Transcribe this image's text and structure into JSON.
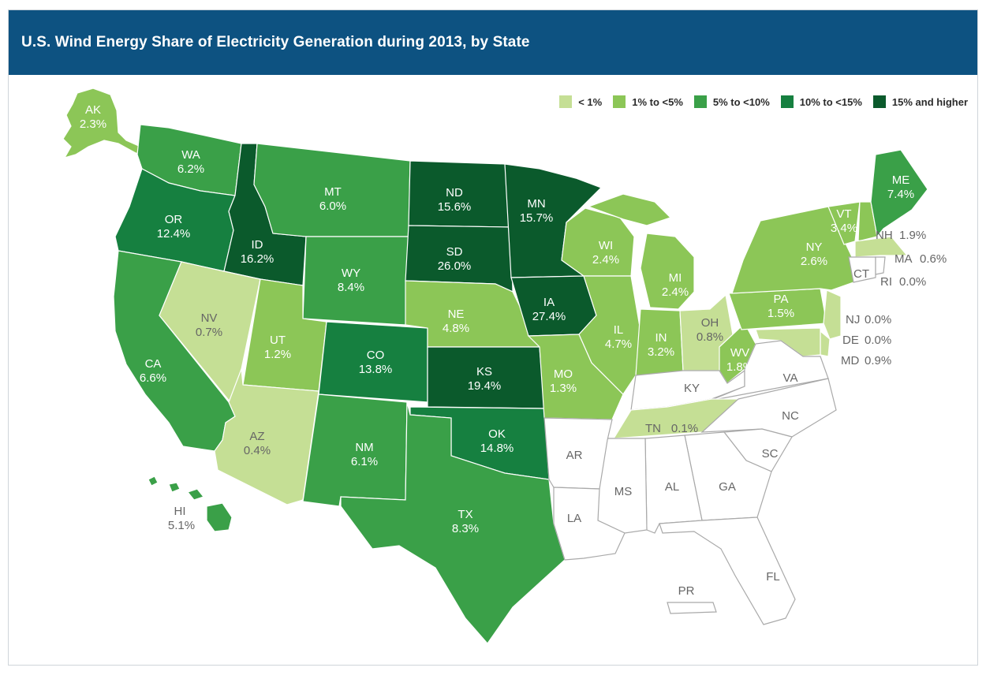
{
  "title": "U.S. Wind Energy Share of Electricity Generation during 2013, by State",
  "colors": {
    "c1": "#c5df95",
    "c2": "#8cc657",
    "c3": "#3aa048",
    "c4": "#168040",
    "c5": "#0b5a2c",
    "none": "#ffffff"
  },
  "legend": [
    {
      "label": "< 1%",
      "color": "#c5df95"
    },
    {
      "label": "1% to <5%",
      "color": "#8cc657"
    },
    {
      "label": "5% to <10%",
      "color": "#3aa048"
    },
    {
      "label": "10% to <15%",
      "color": "#168040"
    },
    {
      "label": "15% and higher",
      "color": "#0b5a2c"
    }
  ],
  "states": {
    "AK": {
      "abbr": "AK",
      "value": "2.3%"
    },
    "HI": {
      "abbr": "HI",
      "value": "5.1%"
    },
    "WA": {
      "abbr": "WA",
      "value": "6.2%"
    },
    "OR": {
      "abbr": "OR",
      "value": "12.4%"
    },
    "CA": {
      "abbr": "CA",
      "value": "6.6%"
    },
    "ID": {
      "abbr": "ID",
      "value": "16.2%"
    },
    "NV": {
      "abbr": "NV",
      "value": "0.7%"
    },
    "MT": {
      "abbr": "MT",
      "value": "6.0%"
    },
    "WY": {
      "abbr": "WY",
      "value": "8.4%"
    },
    "UT": {
      "abbr": "UT",
      "value": "1.2%"
    },
    "AZ": {
      "abbr": "AZ",
      "value": "0.4%"
    },
    "CO": {
      "abbr": "CO",
      "value": "13.8%"
    },
    "NM": {
      "abbr": "NM",
      "value": "6.1%"
    },
    "ND": {
      "abbr": "ND",
      "value": "15.6%"
    },
    "SD": {
      "abbr": "SD",
      "value": "26.0%"
    },
    "NE": {
      "abbr": "NE",
      "value": "4.8%"
    },
    "KS": {
      "abbr": "KS",
      "value": "19.4%"
    },
    "OK": {
      "abbr": "OK",
      "value": "14.8%"
    },
    "TX": {
      "abbr": "TX",
      "value": "8.3%"
    },
    "MN": {
      "abbr": "MN",
      "value": "15.7%"
    },
    "IA": {
      "abbr": "IA",
      "value": "27.4%"
    },
    "MO": {
      "abbr": "MO",
      "value": "1.3%"
    },
    "WI": {
      "abbr": "WI",
      "value": "2.4%"
    },
    "IL": {
      "abbr": "IL",
      "value": "4.7%"
    },
    "MI": {
      "abbr": "MI",
      "value": "2.4%"
    },
    "IN": {
      "abbr": "IN",
      "value": "3.2%"
    },
    "OH": {
      "abbr": "OH",
      "value": "0.8%"
    },
    "WV": {
      "abbr": "WV",
      "value": "1.8%"
    },
    "PA": {
      "abbr": "PA",
      "value": "1.5%"
    },
    "NY": {
      "abbr": "NY",
      "value": "2.6%"
    },
    "VT": {
      "abbr": "VT",
      "value": "3.4%"
    },
    "ME": {
      "abbr": "ME",
      "value": "7.4%"
    },
    "NH": {
      "abbr": "NH",
      "value": "1.9%"
    },
    "MA": {
      "abbr": "MA",
      "value": "0.6%"
    },
    "RI": {
      "abbr": "RI",
      "value": "0.0%"
    },
    "CT": {
      "abbr": "CT"
    },
    "NJ": {
      "abbr": "NJ",
      "value": "0.0%"
    },
    "DE": {
      "abbr": "DE",
      "value": "0.0%"
    },
    "MD": {
      "abbr": "MD",
      "value": "0.9%"
    },
    "TN": {
      "abbr": "TN",
      "value": "0.1%"
    },
    "KY": {
      "abbr": "KY"
    },
    "VA": {
      "abbr": "VA"
    },
    "NC": {
      "abbr": "NC"
    },
    "SC": {
      "abbr": "SC"
    },
    "GA": {
      "abbr": "GA"
    },
    "AL": {
      "abbr": "AL"
    },
    "MS": {
      "abbr": "MS"
    },
    "AR": {
      "abbr": "AR"
    },
    "LA": {
      "abbr": "LA"
    },
    "FL": {
      "abbr": "FL"
    },
    "PR": {
      "abbr": "PR"
    }
  }
}
